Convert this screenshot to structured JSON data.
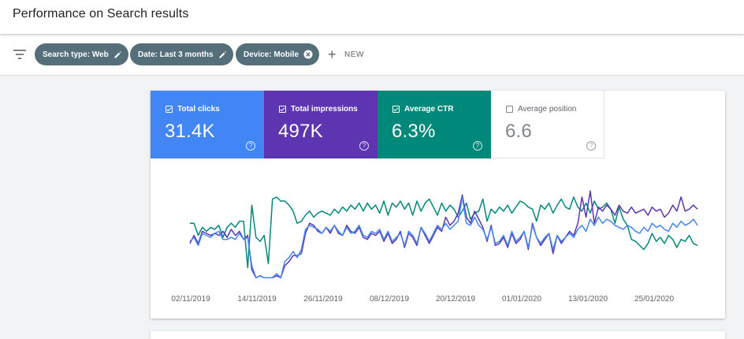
{
  "header": {
    "title": "Performance on Search results"
  },
  "filters": {
    "icon": "filter-list-icon",
    "chips": [
      {
        "label": "Search type: Web",
        "action": "edit"
      },
      {
        "label": "Date: Last 3 months",
        "action": "edit"
      },
      {
        "label": "Device: Mobile",
        "action": "remove"
      }
    ],
    "new_label": "NEW"
  },
  "metrics": [
    {
      "label": "Total clicks",
      "value": "31.4K",
      "checked": true,
      "color": "#4285f4"
    },
    {
      "label": "Total impressions",
      "value": "497K",
      "checked": true,
      "color": "#5e35b1"
    },
    {
      "label": "Average CTR",
      "value": "6.3%",
      "checked": true,
      "color": "#00897b"
    },
    {
      "label": "Average position",
      "value": "6.6",
      "checked": false,
      "color": "#ffffff"
    }
  ],
  "help_glyph": "?",
  "chart_data": {
    "type": "line",
    "x_tick_labels": [
      "02/11/2019",
      "14/11/2019",
      "26/11/2019",
      "08/12/2019",
      "20/12/2019",
      "01/01/2020",
      "13/01/2020",
      "25/01/2020"
    ],
    "grid": false,
    "legend": "none",
    "series": [
      {
        "color": "#00897b",
        "values": [
          0.6,
          0.6,
          0.48,
          0.56,
          0.52,
          0.56,
          0.54,
          0.58,
          0.46,
          0.56,
          0.6,
          0.56,
          0.62,
          0.62,
          0.16,
          0.78,
          0.46,
          0.42,
          0.48,
          0.2,
          0.84,
          0.86,
          0.82,
          0.82,
          0.78,
          0.72,
          0.6,
          0.62,
          0.68,
          0.72,
          0.66,
          0.7,
          0.72,
          0.7,
          0.68,
          0.74,
          0.7,
          0.76,
          0.72,
          0.78,
          0.74,
          0.8,
          0.72,
          0.8,
          0.74,
          0.78,
          0.7,
          0.82,
          0.68,
          0.8,
          0.76,
          0.82,
          0.74,
          0.8,
          0.68,
          0.82,
          0.72,
          0.8,
          0.84,
          0.76,
          0.68,
          0.8,
          0.72,
          0.78,
          0.74,
          0.66,
          0.72,
          0.8,
          0.64,
          0.7,
          0.72,
          0.84,
          0.62,
          0.74,
          0.7,
          0.76,
          0.72,
          0.78,
          0.7,
          0.76,
          0.82,
          0.8,
          0.76,
          0.74,
          0.62,
          0.78,
          0.74,
          0.8,
          0.7,
          0.78,
          0.84,
          0.76,
          0.74,
          0.86,
          0.76,
          0.72,
          0.8,
          0.7,
          0.82,
          0.74,
          0.76,
          0.8,
          0.74,
          0.6,
          0.76,
          0.64,
          0.58,
          0.44,
          0.42,
          0.38,
          0.34,
          0.4,
          0.5,
          0.42,
          0.46,
          0.4,
          0.48,
          0.44,
          0.36,
          0.44,
          0.42,
          0.48,
          0.4,
          0.38
        ]
      },
      {
        "color": "#5e35b1",
        "values": [
          0.4,
          0.48,
          0.4,
          0.52,
          0.5,
          0.48,
          0.5,
          0.48,
          0.52,
          0.46,
          0.54,
          0.48,
          0.52,
          0.44,
          0.48,
          0.14,
          0.06,
          0.08,
          0.06,
          0.06,
          0.06,
          0.08,
          0.06,
          0.18,
          0.22,
          0.28,
          0.28,
          0.3,
          0.5,
          0.6,
          0.58,
          0.52,
          0.5,
          0.56,
          0.5,
          0.58,
          0.5,
          0.48,
          0.58,
          0.52,
          0.5,
          0.56,
          0.46,
          0.44,
          0.5,
          0.48,
          0.52,
          0.42,
          0.5,
          0.4,
          0.44,
          0.52,
          0.36,
          0.5,
          0.46,
          0.38,
          0.56,
          0.48,
          0.4,
          0.48,
          0.56,
          0.52,
          0.66,
          0.58,
          0.62,
          0.7,
          0.88,
          0.66,
          0.6,
          0.72,
          0.64,
          0.56,
          0.42,
          0.58,
          0.38,
          0.4,
          0.46,
          0.36,
          0.5,
          0.4,
          0.44,
          0.52,
          0.34,
          0.6,
          0.46,
          0.38,
          0.44,
          0.5,
          0.3,
          0.48,
          0.4,
          0.46,
          0.52,
          0.48,
          0.6,
          0.86,
          0.66,
          0.92,
          0.6,
          0.76,
          0.72,
          0.78,
          0.74,
          0.68,
          0.78,
          0.72,
          0.7,
          0.76,
          0.7,
          0.72,
          0.74,
          0.68,
          0.76,
          0.72,
          0.74,
          0.66,
          0.7,
          0.78,
          0.72,
          0.86,
          0.72,
          0.74,
          0.78,
          0.74
        ]
      },
      {
        "color": "#4285f4",
        "values": [
          0.42,
          0.46,
          0.38,
          0.5,
          0.48,
          0.46,
          0.5,
          0.52,
          0.44,
          0.44,
          0.46,
          0.44,
          0.5,
          0.44,
          0.46,
          0.18,
          0.06,
          0.08,
          0.06,
          0.06,
          0.06,
          0.1,
          0.06,
          0.22,
          0.26,
          0.32,
          0.26,
          0.34,
          0.54,
          0.58,
          0.56,
          0.54,
          0.5,
          0.56,
          0.52,
          0.58,
          0.52,
          0.48,
          0.56,
          0.5,
          0.52,
          0.58,
          0.48,
          0.46,
          0.52,
          0.5,
          0.54,
          0.44,
          0.52,
          0.42,
          0.46,
          0.5,
          0.38,
          0.52,
          0.48,
          0.4,
          0.56,
          0.5,
          0.42,
          0.5,
          0.58,
          0.54,
          0.6,
          0.54,
          0.58,
          0.62,
          0.86,
          0.6,
          0.58,
          0.66,
          0.58,
          0.54,
          0.44,
          0.56,
          0.4,
          0.42,
          0.48,
          0.38,
          0.52,
          0.42,
          0.46,
          0.52,
          0.36,
          0.58,
          0.46,
          0.4,
          0.46,
          0.5,
          0.34,
          0.48,
          0.42,
          0.46,
          0.5,
          0.46,
          0.54,
          0.58,
          0.52,
          0.64,
          0.58,
          0.66,
          0.6,
          0.64,
          0.62,
          0.58,
          0.56,
          0.54,
          0.58,
          0.56,
          0.52,
          0.5,
          0.56,
          0.52,
          0.6,
          0.56,
          0.58,
          0.54,
          0.52,
          0.6,
          0.56,
          0.62,
          0.58,
          0.6,
          0.64,
          0.58
        ]
      }
    ]
  }
}
